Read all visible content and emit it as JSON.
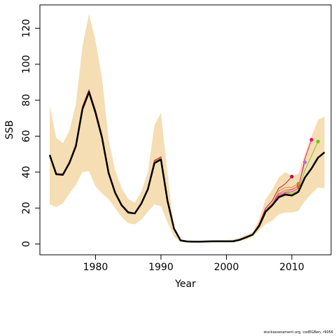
{
  "chart_data": {
    "type": "line",
    "xlabel": "Year",
    "ylabel": "SSB",
    "xlim": [
      1971.5,
      2016
    ],
    "ylim": [
      -6,
      133
    ],
    "x_ticks": [
      1980,
      1990,
      2000,
      2010
    ],
    "y_ticks": [
      0,
      20,
      40,
      60,
      80,
      100,
      120
    ],
    "grid": false,
    "legend": "none",
    "colors": {
      "band": "#f5deb3",
      "main": "#000000",
      "retros": [
        "#c00040",
        "#e05a2a",
        "#d18030",
        "#b86ad6",
        "#e8106a",
        "#66cc00",
        "#7f1ccf"
      ]
    },
    "band": {
      "x": [
        1973,
        1974,
        1975,
        1976,
        1977,
        1978,
        1979,
        1980,
        1981,
        1982,
        1983,
        1984,
        1985,
        1986,
        1987,
        1988,
        1989,
        1990,
        1991,
        1992,
        1993,
        1994,
        1995,
        1996,
        1997,
        1998,
        1999,
        2000,
        2001,
        2002,
        2003,
        2004,
        2005,
        2006,
        2007,
        2008,
        2009,
        2010,
        2011,
        2012,
        2013,
        2014,
        2015
      ],
      "upper": [
        77,
        59,
        56,
        63,
        78,
        110,
        128,
        113,
        92,
        58,
        41,
        31,
        25,
        23,
        29,
        40,
        66,
        73,
        39,
        8,
        2.5,
        2,
        2,
        2,
        2.2,
        2.2,
        2.2,
        2.2,
        2.5,
        3.5,
        5,
        6.5,
        14,
        25,
        30,
        37,
        40,
        38,
        39,
        50,
        60,
        69,
        71
      ],
      "lower": [
        22,
        20.5,
        22.5,
        28,
        33,
        40,
        40.5,
        32,
        28,
        25,
        20,
        15,
        11.5,
        11,
        13.5,
        18,
        22,
        21,
        12,
        4,
        1,
        1,
        0.8,
        0.8,
        0.9,
        0.9,
        0.9,
        0.9,
        1,
        1.5,
        2.5,
        4,
        7.5,
        11,
        13,
        16.5,
        17.5,
        17.5,
        18.5,
        24,
        28,
        31.5,
        31
      ]
    },
    "series": [
      {
        "x": [
          1973,
          1974,
          1975,
          1976,
          1977,
          1978,
          1979,
          1980,
          1981,
          1982,
          1983,
          1984,
          1985,
          1986,
          1987,
          1988,
          1989,
          1990,
          1991,
          1992,
          1993,
          1994,
          1995,
          1996,
          1997,
          1998,
          1999,
          2000,
          2001,
          2002,
          2003,
          2004,
          2005,
          2006,
          2007,
          2008,
          2009,
          2010,
          2011,
          2012,
          2013,
          2014,
          2015
        ],
        "values": [
          49.5,
          38.8,
          38.5,
          45,
          54.5,
          75,
          84.5,
          73,
          59,
          39.5,
          28.5,
          21.5,
          17.5,
          17,
          22.5,
          30.5,
          45,
          47,
          24,
          8.5,
          2,
          1.4,
          1.3,
          1.3,
          1.4,
          1.5,
          1.5,
          1.5,
          1.5,
          2.3,
          3.7,
          5.2,
          10,
          18,
          21.5,
          26,
          27.5,
          27,
          29,
          37,
          42,
          48,
          51
        ]
      },
      {
        "x": [
          1973,
          1974,
          1975,
          1976,
          1977,
          1978,
          1979,
          1980,
          1981,
          1982,
          1983,
          1984,
          1985,
          1986,
          1987,
          1988,
          1989,
          1990,
          1991,
          1992,
          1993,
          1994,
          1995,
          1996,
          1997,
          1998,
          1999,
          2000,
          2001,
          2002,
          2003,
          2004,
          2005,
          2006,
          2007,
          2008,
          2009,
          2010
        ],
        "values": [
          49.5,
          39.2,
          39,
          45.8,
          55.5,
          76.5,
          85.8,
          74.5,
          60.5,
          40.5,
          29,
          22,
          18,
          17.2,
          23,
          31,
          46.5,
          48.5,
          24.5,
          8.6,
          2,
          1.4,
          1.3,
          1.3,
          1.4,
          1.5,
          1.5,
          1.5,
          1.5,
          2.4,
          3.8,
          5.5,
          11,
          20,
          24,
          31,
          33.5,
          37.5
        ]
      },
      {
        "x": [
          1973,
          1974,
          1975,
          1976,
          1977,
          1978,
          1979,
          1980,
          1981,
          1982,
          1983,
          1984,
          1985,
          1986,
          1987,
          1988,
          1989,
          1990,
          1991,
          1992,
          1993,
          1994,
          1995,
          1996,
          1997,
          1998,
          1999,
          2000,
          2001,
          2002,
          2003,
          2004,
          2005,
          2006,
          2007,
          2008,
          2009,
          2010,
          2011
        ],
        "values": [
          49.5,
          39.1,
          38.9,
          45.6,
          55.2,
          76,
          85.3,
          74,
          60,
          40.2,
          28.8,
          21.8,
          17.8,
          17.1,
          22.8,
          30.8,
          46,
          48,
          24.2,
          8.5,
          2,
          1.4,
          1.3,
          1.3,
          1.4,
          1.5,
          1.5,
          1.5,
          1.5,
          2.3,
          3.7,
          5.3,
          10.5,
          19,
          22.5,
          28,
          30,
          30.5,
          32
        ]
      },
      {
        "x": [
          1973,
          1974,
          1975,
          1976,
          1977,
          1978,
          1979,
          1980,
          1981,
          1982,
          1983,
          1984,
          1985,
          1986,
          1987,
          1988,
          1989,
          1990,
          1991,
          1992,
          1993,
          1994,
          1995,
          1996,
          1997,
          1998,
          1999,
          2000,
          2001,
          2002,
          2003,
          2004,
          2005,
          2006,
          2007,
          2008,
          2009,
          2010,
          2011
        ],
        "values": [
          49.5,
          39,
          38.8,
          45.5,
          55,
          75.8,
          85,
          73.8,
          59.8,
          40,
          28.7,
          21.7,
          17.7,
          17,
          22.7,
          30.7,
          45.8,
          47.8,
          24.1,
          8.5,
          2,
          1.4,
          1.3,
          1.3,
          1.4,
          1.5,
          1.5,
          1.5,
          1.5,
          2.3,
          3.7,
          5.3,
          10.3,
          18.8,
          22.3,
          29.5,
          31.5,
          31.5,
          33.5
        ]
      },
      {
        "x": [
          1973,
          1974,
          1975,
          1976,
          1977,
          1978,
          1979,
          1980,
          1981,
          1982,
          1983,
          1984,
          1985,
          1986,
          1987,
          1988,
          1989,
          1990,
          1991,
          1992,
          1993,
          1994,
          1995,
          1996,
          1997,
          1998,
          1999,
          2000,
          2001,
          2002,
          2003,
          2004,
          2005,
          2006,
          2007,
          2008,
          2009,
          2010,
          2011,
          2012
        ],
        "values": [
          49.5,
          39,
          38.7,
          45.3,
          54.8,
          75.5,
          84.8,
          73.5,
          59.5,
          39.8,
          28.6,
          21.6,
          17.6,
          17,
          22.6,
          30.6,
          45.5,
          47.5,
          24,
          8.5,
          2,
          1.4,
          1.3,
          1.3,
          1.4,
          1.5,
          1.5,
          1.5,
          1.5,
          2.3,
          3.7,
          5.3,
          10.2,
          18.5,
          22,
          27.5,
          29,
          30,
          32,
          45.5
        ]
      },
      {
        "x": [
          1973,
          1974,
          1975,
          1976,
          1977,
          1978,
          1979,
          1980,
          1981,
          1982,
          1983,
          1984,
          1985,
          1986,
          1987,
          1988,
          1989,
          1990,
          1991,
          1992,
          1993,
          1994,
          1995,
          1996,
          1997,
          1998,
          1999,
          2000,
          2001,
          2002,
          2003,
          2004,
          2005,
          2006,
          2007,
          2008,
          2009,
          2010,
          2011,
          2012,
          2013
        ],
        "values": [
          49.5,
          38.9,
          38.6,
          45.2,
          54.7,
          75.3,
          84.7,
          73.3,
          59.3,
          39.7,
          28.5,
          21.5,
          17.5,
          17,
          22.5,
          30.5,
          45.2,
          47.2,
          24,
          8.5,
          2,
          1.4,
          1.3,
          1.3,
          1.4,
          1.5,
          1.5,
          1.5,
          1.5,
          2.3,
          3.7,
          5.2,
          10.1,
          18.3,
          21.8,
          26.8,
          28.5,
          29,
          31,
          47.5,
          58
        ]
      },
      {
        "x": [
          1973,
          1974,
          1975,
          1976,
          1977,
          1978,
          1979,
          1980,
          1981,
          1982,
          1983,
          1984,
          1985,
          1986,
          1987,
          1988,
          1989,
          1990,
          1991,
          1992,
          1993,
          1994,
          1995,
          1996,
          1997,
          1998,
          1999,
          2000,
          2001,
          2002,
          2003,
          2004,
          2005,
          2006,
          2007,
          2008,
          2009,
          2010,
          2011,
          2012,
          2013,
          2014
        ],
        "values": [
          49.5,
          38.8,
          38.5,
          45.1,
          54.6,
          75.1,
          84.6,
          73.1,
          59.1,
          39.6,
          28.5,
          21.5,
          17.5,
          17,
          22.5,
          30.5,
          45,
          47,
          24,
          8.5,
          2,
          1.4,
          1.3,
          1.3,
          1.4,
          1.5,
          1.5,
          1.5,
          1.5,
          2.3,
          3.7,
          5.2,
          10,
          18.1,
          21.6,
          26.3,
          28,
          28,
          30,
          41,
          49,
          57
        ]
      }
    ]
  },
  "footer": {
    "text": "stockassessment.org, codEGBen, r9056"
  }
}
